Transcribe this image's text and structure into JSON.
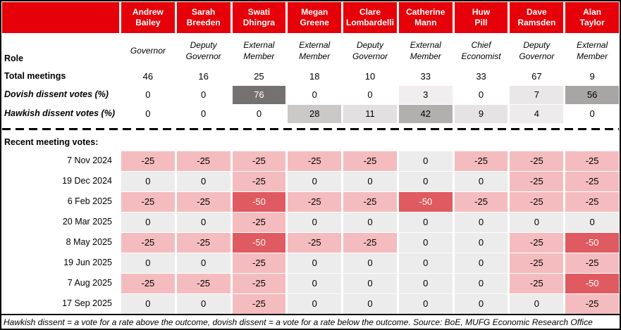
{
  "chart_data": {
    "type": "table",
    "columns": [
      "Andrew Bailey",
      "Sarah Breeden",
      "Swati Dhingra",
      "Megan Greene",
      "Clare Lombardelli",
      "Catherine Mann",
      "Huw Pill",
      "Dave Ramsden",
      "Alan Taylor"
    ],
    "roles": [
      "Governor",
      "Deputy Governor",
      "External Member",
      "External Member",
      "Deputy Governor",
      "External Member",
      "Chief Economist",
      "Deputy Governor",
      "External Member"
    ],
    "row_labels": {
      "role": "Role",
      "total_meetings": "Total meetings",
      "dovish": "Dovish dissent votes (%)",
      "hawkish": "Hawkish dissent votes (%)",
      "recent": "Recent meeting votes:"
    },
    "total_meetings": [
      46,
      16,
      25,
      18,
      10,
      33,
      33,
      67,
      9
    ],
    "dovish_dissent_pct": [
      0,
      0,
      76,
      0,
      0,
      3,
      0,
      7,
      56
    ],
    "hawkish_dissent_pct": [
      0,
      0,
      0,
      28,
      11,
      42,
      9,
      4,
      0
    ],
    "recent_votes": {
      "dates": [
        "7 Nov 2024",
        "19 Dec 2024",
        "6 Feb 2025",
        "20 Mar 2025",
        "8 May 2025",
        "19 Jun 2025",
        "7 Aug 2025",
        "17 Sep 2025"
      ],
      "values": [
        [
          -25,
          -25,
          -25,
          -25,
          -25,
          0,
          -25,
          -25,
          -25
        ],
        [
          0,
          0,
          -25,
          0,
          0,
          0,
          0,
          -25,
          -25
        ],
        [
          -25,
          -25,
          -50,
          -25,
          -25,
          -50,
          -25,
          -25,
          -25
        ],
        [
          0,
          0,
          -25,
          0,
          0,
          0,
          0,
          0,
          0
        ],
        [
          -25,
          -25,
          -50,
          -25,
          -25,
          0,
          0,
          -25,
          -50
        ],
        [
          0,
          0,
          -25,
          0,
          0,
          0,
          0,
          -25,
          -25
        ],
        [
          -25,
          -25,
          -25,
          0,
          0,
          0,
          0,
          -25,
          -50
        ],
        [
          0,
          0,
          -25,
          0,
          0,
          0,
          0,
          0,
          -25
        ]
      ]
    },
    "footnote": "Hawkish dissent = a vote for a rate above the outcome, dovish dissent = a vote for a rate below the outcome. Source: BoE, MUFG Economic Research Office"
  },
  "colors": {
    "header_bg": "#E60009",
    "header_text": "#FFFFFF",
    "vote_minus25_bg": "#F4BCBE",
    "vote_minus50_bg": "#E05A61",
    "vote_minus50_text": "#FFFFFF",
    "vote_zero_bg": "#EDECEC",
    "pct_shades": {
      "3": "#F0EEEE",
      "4": "#EDEBEB",
      "7": "#E9E7E7",
      "9": "#E5E3E3",
      "11": "#E2E0E0",
      "28": "#CBC8C8",
      "42": "#B2AFAF",
      "56": "#A8A5A5",
      "76": "#767171"
    },
    "pct_white_text_from": 70
  }
}
